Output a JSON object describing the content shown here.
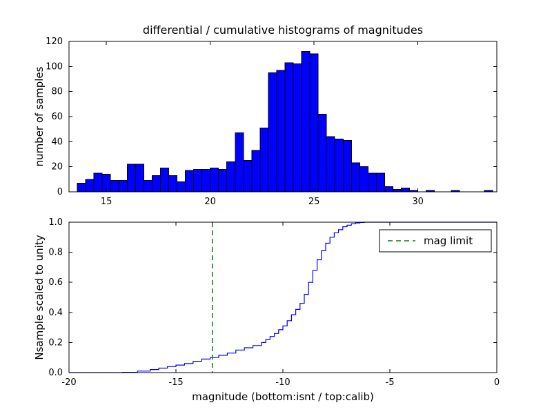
{
  "figure": {
    "background": "#ffffff"
  },
  "chart_data": [
    {
      "type": "bar",
      "title": "differential / cumulative histograms of magnitudes",
      "ylabel": "number of samples",
      "xlim": [
        13.2,
        33.8
      ],
      "ylim": [
        0,
        120
      ],
      "xticks": [
        15,
        20,
        25,
        30
      ],
      "xtick_labels": [
        "15",
        "20",
        "25",
        "30"
      ],
      "yticks": [
        0,
        20,
        40,
        60,
        80,
        100,
        120
      ],
      "ytick_labels": [
        "0",
        "20",
        "40",
        "60",
        "80",
        "100",
        "120"
      ],
      "grid": false,
      "bar_color": "#0000ff",
      "bar_edge_color": "#000000",
      "bins_start": 13.6,
      "bin_width": 0.4,
      "values": [
        7,
        10,
        15,
        14,
        9,
        9,
        22,
        22,
        9,
        13,
        19,
        13,
        8,
        17,
        18,
        18,
        19,
        18,
        24,
        47,
        25,
        33,
        51,
        95,
        97,
        103,
        102,
        112,
        110,
        62,
        44,
        42,
        41,
        23,
        20,
        15,
        15,
        4,
        2,
        3,
        1,
        0,
        1,
        0,
        0,
        1,
        0,
        0,
        0,
        1
      ]
    },
    {
      "type": "line",
      "style": "step-post",
      "ylabel": "Nsample scaled to unity",
      "xlabel": "magnitude (bottom:isnt / top:calib)",
      "xlim": [
        -20,
        0
      ],
      "ylim": [
        0,
        1.0
      ],
      "xticks": [
        -20,
        -15,
        -10,
        -5,
        0
      ],
      "xtick_labels": [
        "-20",
        "-15",
        "-10",
        "-5",
        "0"
      ],
      "yticks": [
        0,
        0.2,
        0.4,
        0.6,
        0.8,
        1.0
      ],
      "ytick_labels": [
        "0.0",
        "0.2",
        "0.4",
        "0.6",
        "0.8",
        "1.0"
      ],
      "grid": false,
      "line_color": "#0000ff",
      "x": [
        -20,
        -17.5,
        -16.8,
        -16.2,
        -15.8,
        -15.4,
        -15.0,
        -14.6,
        -14.2,
        -13.8,
        -13.4,
        -13.0,
        -12.6,
        -12.2,
        -11.8,
        -11.4,
        -11.0,
        -10.8,
        -10.6,
        -10.4,
        -10.2,
        -10.0,
        -9.8,
        -9.6,
        -9.4,
        -9.2,
        -9.0,
        -8.8,
        -8.6,
        -8.4,
        -8.2,
        -8.0,
        -7.8,
        -7.6,
        -7.4,
        -7.2,
        -7.0,
        -6.8,
        -6.6,
        -6.4,
        -6.2,
        0
      ],
      "y": [
        0.0,
        0.002,
        0.01,
        0.02,
        0.03,
        0.04,
        0.05,
        0.06,
        0.075,
        0.09,
        0.1,
        0.115,
        0.13,
        0.15,
        0.165,
        0.18,
        0.2,
        0.22,
        0.24,
        0.26,
        0.285,
        0.31,
        0.345,
        0.385,
        0.42,
        0.46,
        0.52,
        0.6,
        0.68,
        0.75,
        0.81,
        0.86,
        0.9,
        0.93,
        0.95,
        0.97,
        0.98,
        0.99,
        0.995,
        0.998,
        1.0,
        1.0
      ],
      "vline": {
        "x": -13.3,
        "color": "#008000",
        "style": "dashed",
        "label": "mag limit"
      },
      "legend": {
        "loc": "upper right",
        "entries": [
          {
            "label": "mag limit",
            "color": "#008000",
            "style": "dashed"
          }
        ]
      }
    }
  ]
}
